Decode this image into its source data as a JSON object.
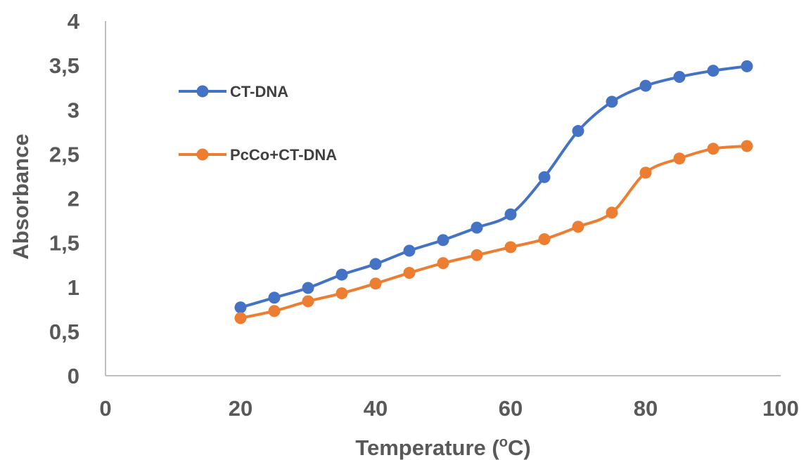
{
  "chart_data": {
    "type": "line",
    "xlabel_main": "Temperature (",
    "xlabel_sup": "o",
    "xlabel_end": "C)",
    "ylabel": "Absorbance",
    "xlim": [
      0,
      100
    ],
    "ylim": [
      0,
      4
    ],
    "x_ticks": [
      0,
      20,
      40,
      60,
      80,
      100
    ],
    "y_ticks": [
      0,
      0.5,
      1,
      1.5,
      2,
      2.5,
      3,
      3.5,
      4
    ],
    "x_tick_labels": [
      "0",
      "20",
      "40",
      "60",
      "80",
      "100"
    ],
    "y_tick_labels": [
      "0",
      "0,5",
      "1",
      "1,5",
      "2",
      "2,5",
      "3",
      "3,5",
      "4"
    ],
    "grid": false,
    "legend_position": "upper-left",
    "x": [
      20,
      25,
      30,
      35,
      40,
      45,
      50,
      55,
      60,
      65,
      70,
      75,
      80,
      85,
      90,
      95
    ],
    "series": [
      {
        "name": "CT-DNA",
        "color": "#4472C4",
        "values": [
          0.77,
          0.88,
          0.99,
          1.14,
          1.26,
          1.41,
          1.53,
          1.67,
          1.82,
          2.24,
          2.76,
          3.09,
          3.27,
          3.37,
          3.44,
          3.49
        ]
      },
      {
        "name": "PcCo+CT-DNA",
        "color": "#ED7D31",
        "values": [
          0.65,
          0.73,
          0.84,
          0.93,
          1.04,
          1.16,
          1.27,
          1.36,
          1.45,
          1.54,
          1.68,
          1.84,
          2.29,
          2.45,
          2.56,
          2.59
        ]
      }
    ]
  }
}
